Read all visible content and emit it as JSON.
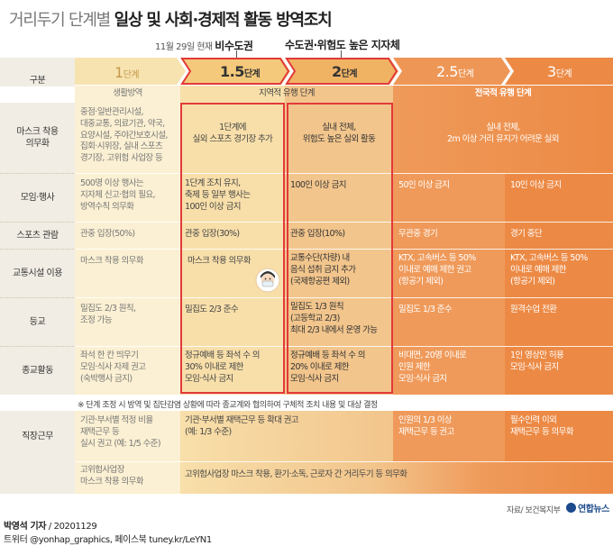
{
  "title": {
    "light": "거리두기 단계별",
    "bold": "일상 및 사회·경제적 활동 방역조치"
  },
  "annotations": {
    "date": "11월 29일 현재",
    "a1": "비수도권",
    "a2": "수도권·위험도 높은 지자체"
  },
  "stages": [
    {
      "num": "1",
      "unit": "단계"
    },
    {
      "num": "1.5",
      "unit": "단계"
    },
    {
      "num": "2",
      "unit": "단계"
    },
    {
      "num": "2.5",
      "unit": "단계"
    },
    {
      "num": "3",
      "unit": "단계"
    }
  ],
  "header_label": "구분",
  "groups": [
    "생활방역",
    "지역적 유행 단계",
    "전국적 유행 단계"
  ],
  "rows": [
    {
      "label": [
        "마스크 착용",
        "의무화"
      ],
      "c1": [
        "중점·일반관리시설,",
        "대중교통, 의료기관, 약국,",
        "요양시설, 주야간보호시설,",
        "집회·시위장, 실내 스포츠",
        "경기장, 고위험 사업장 등"
      ],
      "c2": [
        "1단계에",
        "실외 스포츠 경기장 추가"
      ],
      "c3": [
        "실내 전체,",
        "위험도 높은 실외 활동"
      ],
      "c45": [
        "실내 전체,",
        "2m 이상 거리 유지가 어려운 실외"
      ]
    },
    {
      "label": [
        "모임·행사"
      ],
      "c1": [
        "500명 이상 행사는",
        "지자체 신고·협의 필요,",
        "방역수칙 의무화"
      ],
      "c2": [
        "1단계 조치 유지,",
        "축제 등 일부 행사는",
        "100인 이상 금지"
      ],
      "c3": [
        "100인 이상 금지"
      ],
      "c4": [
        "50인 이상 금지"
      ],
      "c5": [
        "10인 이상 금지"
      ]
    },
    {
      "label": [
        "스포츠 관람"
      ],
      "c1": [
        "관중 입장(50%)"
      ],
      "c2": [
        "관중 입장(30%)"
      ],
      "c3": [
        "관중 입장(10%)"
      ],
      "c4": [
        "무관중 경기"
      ],
      "c5": [
        "경기 중단"
      ]
    },
    {
      "label": [
        "교통시설 이용"
      ],
      "c1": [
        "마스크 착용 의무화"
      ],
      "c2": [
        "마스크 착용 의무화"
      ],
      "c3": [
        "교통수단(차량) 내",
        "음식 섭취 금지 추가",
        "(국제항공편 제외)"
      ],
      "c4": [
        "KTX, 고속버스 등 50%",
        "이내로 예매 제한 권고",
        "(항공기 제외)"
      ],
      "c5": [
        "KTX, 고속버스 등 50%",
        "이내로 예매 제한",
        "(항공기 제외)"
      ]
    },
    {
      "label": [
        "등교"
      ],
      "c1": [
        "밀집도 2/3 원칙,",
        "조정 가능"
      ],
      "c2": [
        "밀집도 2/3 준수"
      ],
      "c3": [
        "밀집도 1/3 원칙",
        "(고등학교 2/3)",
        "최대 2/3 내에서 운영 가능"
      ],
      "c4": [
        "밀집도 1/3 준수"
      ],
      "c5": [
        "원격수업 전환"
      ]
    },
    {
      "label": [
        "종교활동"
      ],
      "c1": [
        "좌석 한 칸 띄우기",
        "모임·식사 자제 권고",
        "(숙박행사 금지)"
      ],
      "c2": [
        "정규예배 등 좌석 수 의",
        "30% 이내로 제한",
        "모임·식사 금지"
      ],
      "c3": [
        "정규예배 등 좌석 수 의",
        "20% 이내로 제한",
        "모임·식사 금지"
      ],
      "c4": [
        "비대면, 20명 이내로",
        "인원 제한",
        "모임·식사 금지"
      ],
      "c5": [
        "1인 영상만 허용",
        "모임·식사 금지"
      ]
    }
  ],
  "note": "※ 단계 조정 시 방역 및 집단감염 상황에 따라 종교계와 협의하여 구체적 조치 내용 및 대상 결정",
  "work": {
    "label": "직장근무",
    "c1a": [
      "기관·부서별 적정 비율",
      "재택근무 등",
      "실시 권고 (예: 1/5 수준)"
    ],
    "c23a": [
      "기관·부서별 재택근무 등 확대 권고",
      "(예: 1/3 수준)"
    ],
    "c4": [
      "인원의 1/3 이상",
      "재택근무 등 권고"
    ],
    "c5": [
      "필수인력 이외",
      "재택근무 등 의무화"
    ],
    "c1b": [
      "고위험사업장",
      "마스크 착용 의무화"
    ],
    "c2b": "고위험사업장 마스크 착용, 환기·소독, 근로자 간 거리두기 등 의무화"
  },
  "footer": {
    "author": "박영석 기자",
    "date": "20201129",
    "social": "트위터 @yonhap_graphics, 페이스북 tuney.kr/LeYN1",
    "source": "자료/ 보건복지부",
    "logo": "연합뉴스"
  },
  "colors": {
    "stage1": "#fbf0d3",
    "stage15": "#f8dfaa",
    "stage2": "#f2c58c",
    "stage25": "#ef9a5a",
    "stage3": "#ec8a45",
    "highlight": "#e23a3a"
  }
}
